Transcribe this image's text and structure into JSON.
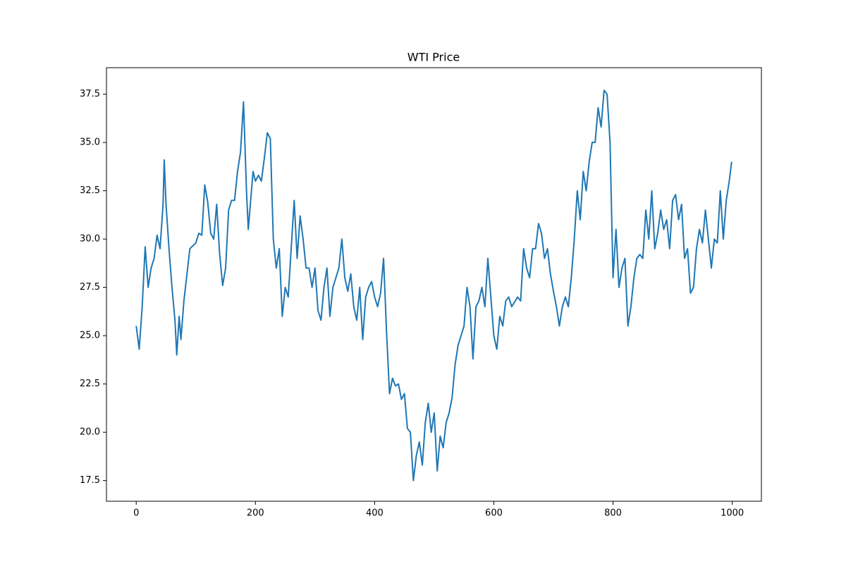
{
  "chart_data": {
    "type": "line",
    "title": "WTI Price",
    "color": "#1f77b4",
    "x": [
      0,
      5,
      10,
      15,
      20,
      25,
      30,
      35,
      40,
      45,
      47,
      50,
      55,
      60,
      65,
      68,
      72,
      75,
      80,
      90,
      100,
      105,
      110,
      115,
      120,
      125,
      130,
      135,
      140,
      145,
      150,
      155,
      160,
      165,
      170,
      175,
      180,
      185,
      188,
      192,
      196,
      200,
      205,
      210,
      215,
      220,
      225,
      230,
      235,
      240,
      245,
      250,
      255,
      260,
      265,
      270,
      275,
      280,
      285,
      290,
      295,
      300,
      305,
      310,
      315,
      320,
      325,
      330,
      340,
      345,
      350,
      355,
      360,
      365,
      370,
      375,
      380,
      385,
      390,
      395,
      400,
      405,
      410,
      415,
      420,
      425,
      430,
      435,
      440,
      445,
      450,
      455,
      460,
      465,
      470,
      475,
      480,
      485,
      490,
      495,
      500,
      505,
      510,
      515,
      520,
      525,
      530,
      535,
      540,
      545,
      550,
      555,
      560,
      565,
      570,
      575,
      580,
      585,
      590,
      595,
      600,
      605,
      610,
      615,
      620,
      625,
      630,
      640,
      645,
      650,
      655,
      660,
      665,
      670,
      675,
      680,
      685,
      690,
      695,
      700,
      705,
      710,
      715,
      720,
      725,
      730,
      735,
      740,
      745,
      750,
      755,
      760,
      765,
      770,
      775,
      780,
      785,
      790,
      795,
      800,
      805,
      810,
      815,
      820,
      825,
      830,
      835,
      840,
      845,
      850,
      855,
      860,
      865,
      870,
      875,
      880,
      885,
      890,
      895,
      900,
      905,
      910,
      915,
      920,
      925,
      930,
      935,
      940,
      945,
      950,
      955,
      960,
      965,
      970,
      975,
      980,
      985,
      990,
      995,
      999
    ],
    "values": [
      25.5,
      24.3,
      26.5,
      29.6,
      27.5,
      28.5,
      29.0,
      30.2,
      29.5,
      31.8,
      34.1,
      31.8,
      29.5,
      27.5,
      25.8,
      24.0,
      26.0,
      24.8,
      26.8,
      29.5,
      29.8,
      30.3,
      30.2,
      32.8,
      31.9,
      30.3,
      30.0,
      31.8,
      29.2,
      27.6,
      28.5,
      31.5,
      32.0,
      32.0,
      33.5,
      34.5,
      37.1,
      32.5,
      30.5,
      32.0,
      33.5,
      33.0,
      33.3,
      33.0,
      34.2,
      35.5,
      35.2,
      30.0,
      28.5,
      29.5,
      26.0,
      27.5,
      27.0,
      29.5,
      32.0,
      29.0,
      31.2,
      30.0,
      28.5,
      28.5,
      27.5,
      28.5,
      26.3,
      25.8,
      27.5,
      28.5,
      26.0,
      27.5,
      28.5,
      30.0,
      28.0,
      27.3,
      28.2,
      26.5,
      25.8,
      27.5,
      24.8,
      27.0,
      27.5,
      27.8,
      27.0,
      26.5,
      27.2,
      29.0,
      25.2,
      22.0,
      22.8,
      22.4,
      22.5,
      21.7,
      22.0,
      20.2,
      20.0,
      17.5,
      18.8,
      19.5,
      18.3,
      20.5,
      21.5,
      20.0,
      21.0,
      18.0,
      19.8,
      19.2,
      20.5,
      21.0,
      21.8,
      23.5,
      24.5,
      25.0,
      25.5,
      27.5,
      26.5,
      23.8,
      26.5,
      26.8,
      27.5,
      26.5,
      29.0,
      27.0,
      25.0,
      24.3,
      26.0,
      25.5,
      26.8,
      27.0,
      26.5,
      27.0,
      26.8,
      29.5,
      28.5,
      28.0,
      29.5,
      29.5,
      30.8,
      30.3,
      29.0,
      29.5,
      28.2,
      27.3,
      26.5,
      25.5,
      26.5,
      27.0,
      26.5,
      28.0,
      30.0,
      32.5,
      31.0,
      33.5,
      32.5,
      34.0,
      35.0,
      35.0,
      36.8,
      35.8,
      37.7,
      37.5,
      35.0,
      28.0,
      30.5,
      27.5,
      28.5,
      29.0,
      25.5,
      26.5,
      28.0,
      29.0,
      29.2,
      29.0,
      31.5,
      30.0,
      32.5,
      29.5,
      30.3,
      31.5,
      30.5,
      31.0,
      29.5,
      32.0,
      32.3,
      31.0,
      31.8,
      29.0,
      29.5,
      27.2,
      27.5,
      29.5,
      30.5,
      29.8,
      31.5,
      30.0,
      28.5,
      30.0,
      29.8,
      32.5,
      30.0,
      32.0,
      33.0,
      34.0
    ],
    "xlim": [
      -49.95,
      1048.95
    ],
    "ylim": [
      16.43,
      38.87
    ],
    "xticks": [
      0,
      200,
      400,
      600,
      800,
      1000
    ],
    "yticks": [
      17.5,
      {
        "value": 20,
        "label": "20.0"
      },
      22.5,
      {
        "value": 25,
        "label": "25.0"
      },
      27.5,
      {
        "value": 30,
        "label": "30.0"
      },
      32.5,
      {
        "value": 35,
        "label": "35.0"
      },
      37.5
    ]
  }
}
